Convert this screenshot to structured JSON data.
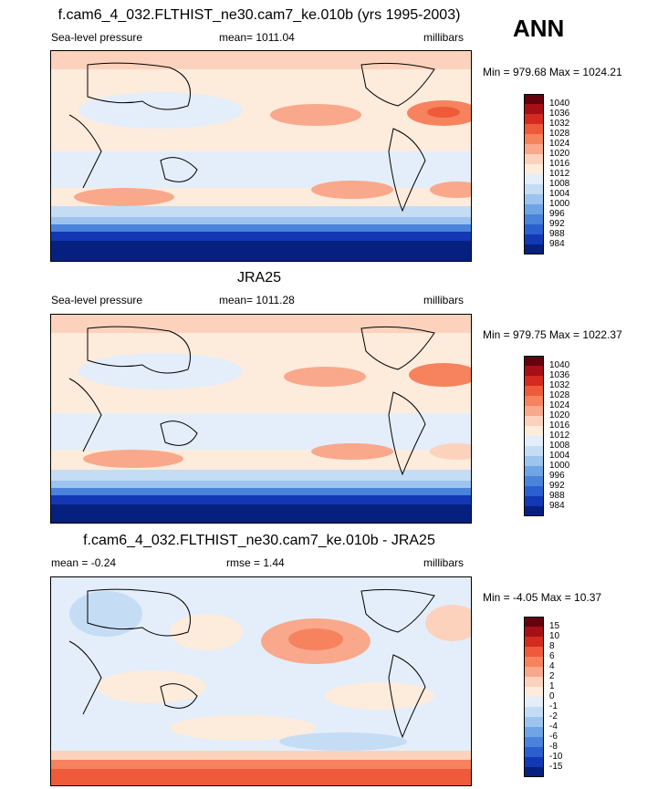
{
  "season": "ANN",
  "panels": [
    {
      "title": "f.cam6_4_032.FLTHIST_ne30.cam7_ke.010b (yrs 1995-2003)",
      "left_label": "Sea-level pressure",
      "center_label": "mean= 1011.04",
      "right_label": "millibars",
      "minmax": "Min = 979.68 Max = 1024.21",
      "levels": [
        "1040",
        "1036",
        "1032",
        "1028",
        "1024",
        "1020",
        "1016",
        "1012",
        "1008",
        "1004",
        "1000",
        "996",
        "992",
        "988",
        "984"
      ],
      "colors": [
        "#67000d",
        "#a50f15",
        "#d42a20",
        "#ef5a3a",
        "#f7825e",
        "#f9a88b",
        "#fcd2bd",
        "#fdebdc",
        "#e3eefa",
        "#c5dcf5",
        "#9dc3ef",
        "#6ea5e6",
        "#4a83dc",
        "#2b5fd0",
        "#1238b5",
        "#062080"
      ]
    },
    {
      "title": "JRA25",
      "left_label": "Sea-level pressure",
      "center_label": "mean= 1011.28",
      "right_label": "millibars",
      "minmax": "Min = 979.75 Max = 1022.37",
      "levels": [
        "1040",
        "1036",
        "1032",
        "1028",
        "1024",
        "1020",
        "1016",
        "1012",
        "1008",
        "1004",
        "1000",
        "996",
        "992",
        "988",
        "984"
      ],
      "colors": [
        "#67000d",
        "#a50f15",
        "#d42a20",
        "#ef5a3a",
        "#f7825e",
        "#f9a88b",
        "#fcd2bd",
        "#fdebdc",
        "#e3eefa",
        "#c5dcf5",
        "#9dc3ef",
        "#6ea5e6",
        "#4a83dc",
        "#2b5fd0",
        "#1238b5",
        "#062080"
      ]
    },
    {
      "title": "f.cam6_4_032.FLTHIST_ne30.cam7_ke.010b - JRA25",
      "left_label": "mean =  -0.24",
      "center_label": "rmse =   1.44",
      "right_label": "millibars",
      "minmax": "Min =  -4.05 Max =  10.37",
      "levels": [
        "15",
        "10",
        "8",
        "6",
        "4",
        "2",
        "1",
        "0",
        "-1",
        "-2",
        "-4",
        "-6",
        "-8",
        "-10",
        "-15"
      ],
      "colors": [
        "#67000d",
        "#a50f15",
        "#d42a20",
        "#ef5a3a",
        "#f7825e",
        "#f9a88b",
        "#fcd2bd",
        "#fdebdc",
        "#e3eefa",
        "#c5dcf5",
        "#9dc3ef",
        "#6ea5e6",
        "#4a83dc",
        "#2b5fd0",
        "#1238b5",
        "#062080"
      ]
    }
  ]
}
